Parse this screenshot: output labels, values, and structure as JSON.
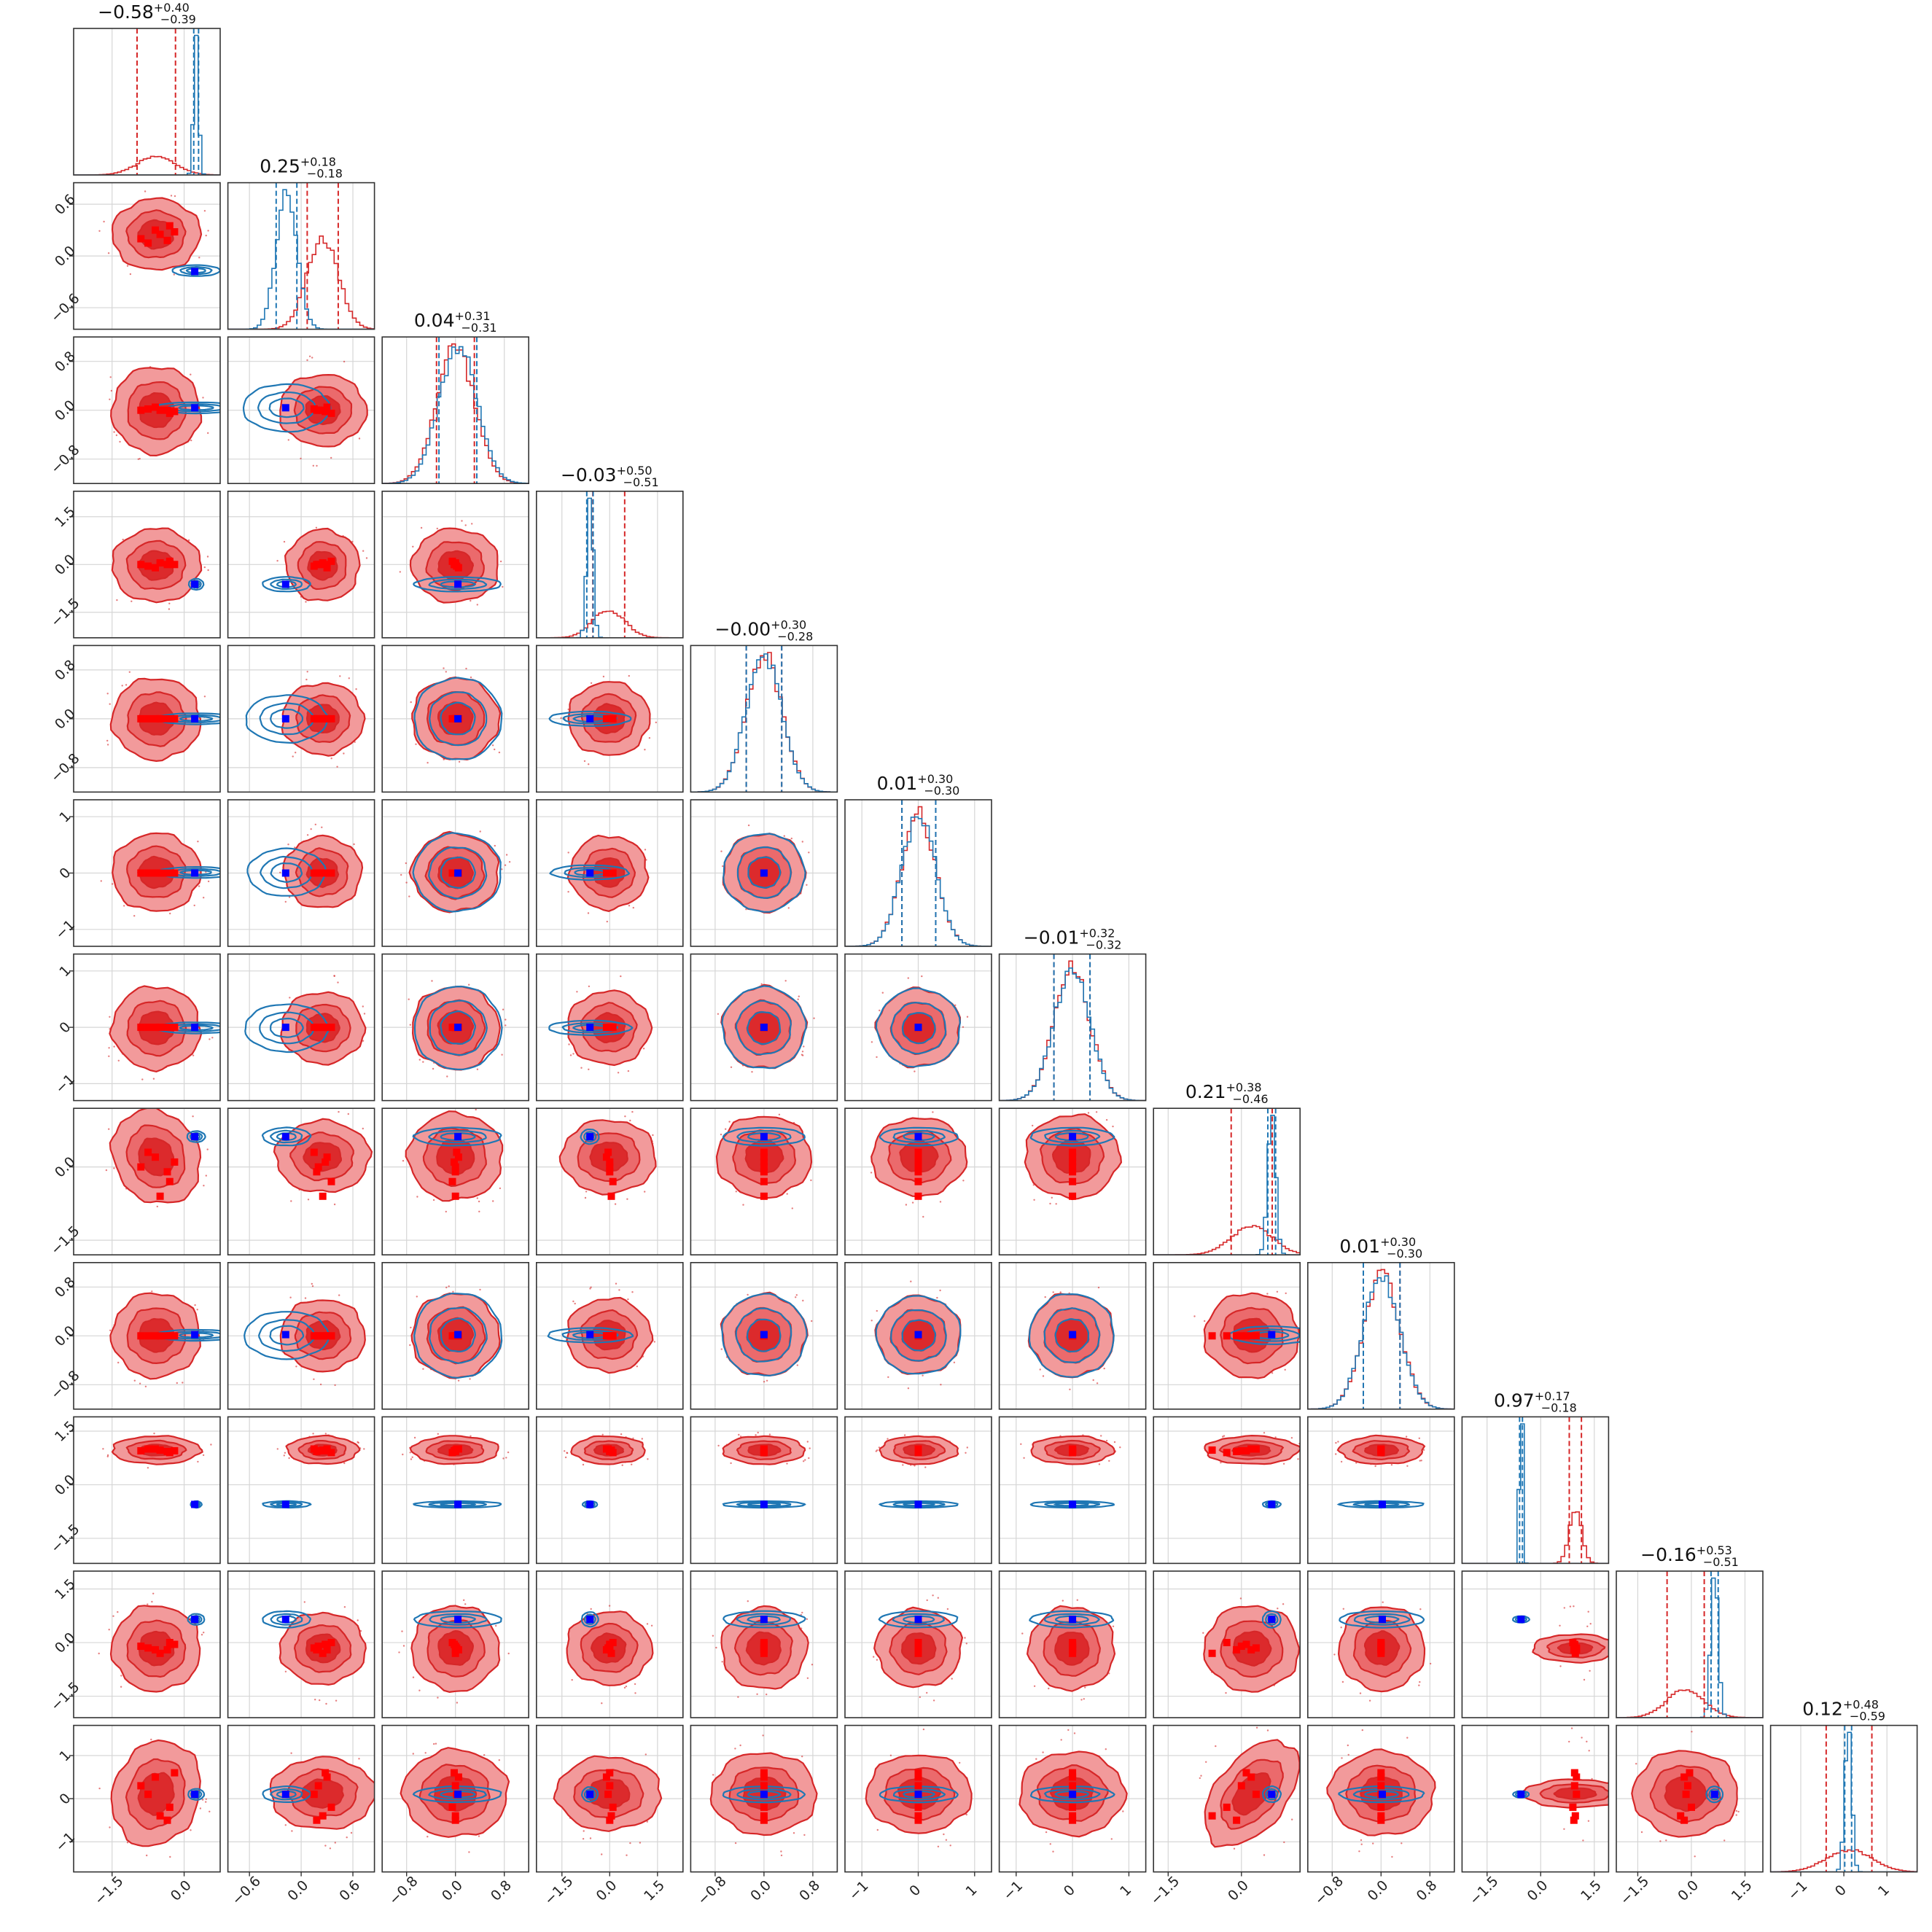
{
  "chart_data": {
    "type": "corner",
    "n_params": 12,
    "grid": true,
    "colors": {
      "posterior_red": "#d62728",
      "posterior_blue": "#1f77b4",
      "marker_red": "#ff0000",
      "marker_blue": "#0000ff",
      "contour_fill_outer": "#f29a9b",
      "contour_fill_inner": "#dc2a2c"
    },
    "series": [
      {
        "name": "",
        "color": "#d62728",
        "style": "filled contours"
      },
      {
        "name": "",
        "color": "#1f77b4",
        "style": "line contours"
      }
    ],
    "params": [
      {
        "title": "−0.58",
        "plus": "+0.40",
        "minus": "−0.39",
        "range": [
          -2.3,
          0.75
        ],
        "ticks": [
          -1.5,
          0.0
        ],
        "tick_labels": [
          "−1.5",
          "0.0"
        ],
        "red": {
          "mean": -0.58,
          "sd": 0.4
        },
        "blue": {
          "mean": 0.25,
          "sd": 0.05
        },
        "red_points": [
          -0.9,
          -0.6,
          -0.3,
          -0.5,
          -0.75,
          -0.2,
          -0.35
        ],
        "blue_point": 0.22
      },
      {
        "title": "0.25",
        "plus": "+0.18",
        "minus": "−0.18",
        "range": [
          -0.85,
          0.85
        ],
        "ticks": [
          -0.6,
          0.0,
          0.6
        ],
        "tick_labels": [
          "−0.6",
          "0.0",
          "0.6"
        ],
        "red": {
          "mean": 0.25,
          "sd": 0.18
        },
        "blue": {
          "mean": -0.17,
          "sd": 0.12
        },
        "red_points": [
          0.2,
          0.3,
          0.35,
          0.25,
          0.15,
          0.28,
          0.18
        ],
        "blue_point": -0.18
      },
      {
        "title": "0.04",
        "plus": "+0.31",
        "minus": "−0.31",
        "range": [
          -1.2,
          1.2
        ],
        "ticks": [
          -0.8,
          0.0,
          0.8
        ],
        "tick_labels": [
          "−0.8",
          "0.0",
          "0.8"
        ],
        "red": {
          "mean": 0.0,
          "sd": 0.31
        },
        "blue": {
          "mean": 0.04,
          "sd": 0.31
        },
        "red_points": [
          0.0,
          0.05,
          -0.05,
          0.0,
          0.02,
          -0.02,
          0.0
        ],
        "blue_point": 0.04
      },
      {
        "title": "−0.03",
        "plus": "+0.50",
        "minus": "−0.51",
        "range": [
          -2.3,
          2.3
        ],
        "ticks": [
          -1.5,
          0.0,
          1.5
        ],
        "tick_labels": [
          "−1.5",
          "0.0",
          "1.5"
        ],
        "red": {
          "mean": -0.03,
          "sd": 0.5
        },
        "blue": {
          "mean": -0.62,
          "sd": 0.1
        },
        "red_points": [
          0.0,
          -0.1,
          0.1,
          0.05,
          -0.05,
          0.0,
          0.0
        ],
        "blue_point": -0.62
      },
      {
        "title": "−0.00",
        "plus": "+0.30",
        "minus": "−0.28",
        "range": [
          -1.2,
          1.2
        ],
        "ticks": [
          -0.8,
          0.0,
          0.8
        ],
        "tick_labels": [
          "−0.8",
          "0.0",
          "0.8"
        ],
        "red": {
          "mean": 0.0,
          "sd": 0.29
        },
        "blue": {
          "mean": 0.0,
          "sd": 0.29
        },
        "red_points": [
          0.0,
          0.0,
          0.0,
          0.0,
          0.0,
          0.0,
          0.0
        ],
        "blue_point": 0.0
      },
      {
        "title": "0.01",
        "plus": "+0.30",
        "minus": "−0.30",
        "range": [
          -1.3,
          1.3
        ],
        "ticks": [
          -1,
          0,
          1
        ],
        "tick_labels": [
          "−1",
          "0",
          "1"
        ],
        "red": {
          "mean": 0.01,
          "sd": 0.3
        },
        "blue": {
          "mean": 0.01,
          "sd": 0.3
        },
        "red_points": [
          0.0,
          0.0,
          0.0,
          0.0,
          0.0,
          0.0,
          0.0
        ],
        "blue_point": 0.0
      },
      {
        "title": "−0.01",
        "plus": "+0.32",
        "minus": "−0.32",
        "range": [
          -1.3,
          1.3
        ],
        "ticks": [
          -1,
          0,
          1
        ],
        "tick_labels": [
          "−1",
          "0",
          "1"
        ],
        "red": {
          "mean": -0.01,
          "sd": 0.32
        },
        "blue": {
          "mean": -0.01,
          "sd": 0.32
        },
        "red_points": [
          0.0,
          0.0,
          0.0,
          0.0,
          0.0,
          0.0,
          0.0
        ],
        "blue_point": 0.0
      },
      {
        "title": "0.21",
        "plus": "+0.38",
        "minus": "−0.46",
        "range": [
          -1.8,
          1.2
        ],
        "ticks": [
          -1.5,
          0.0
        ],
        "tick_labels": [
          "−1.5",
          "0.0"
        ],
        "red": {
          "mean": 0.21,
          "sd": 0.42
        },
        "blue": {
          "mean": 0.62,
          "sd": 0.08
        },
        "red_points": [
          0.0,
          0.2,
          -0.3,
          -0.6,
          0.3,
          0.1,
          -0.1
        ],
        "blue_point": 0.62
      },
      {
        "title": "0.01",
        "plus": "+0.30",
        "minus": "−0.30",
        "range": [
          -1.2,
          1.2
        ],
        "ticks": [
          -0.8,
          0.0,
          0.8
        ],
        "tick_labels": [
          "−0.8",
          "0.0",
          "0.8"
        ],
        "red": {
          "mean": 0.01,
          "sd": 0.3
        },
        "blue": {
          "mean": 0.01,
          "sd": 0.3
        },
        "red_points": [
          0.0,
          0.0,
          0.0,
          0.0,
          0.0,
          0.0,
          0.0
        ],
        "blue_point": 0.02
      },
      {
        "title": "0.97",
        "plus": "+0.17",
        "minus": "−0.18",
        "range": [
          -2.2,
          1.9
        ],
        "ticks": [
          -1.5,
          0.0,
          1.5
        ],
        "tick_labels": [
          "−1.5",
          "0.0",
          "1.5"
        ],
        "red": {
          "mean": 0.97,
          "sd": 0.17
        },
        "blue": {
          "mean": -0.55,
          "sd": 0.04
        },
        "red_points": [
          0.95,
          1.0,
          0.9,
          0.97,
          1.0,
          0.95,
          0.93
        ],
        "blue_point": -0.55
      },
      {
        "title": "−0.16",
        "plus": "+0.53",
        "minus": "−0.51",
        "range": [
          -2.1,
          2.0
        ],
        "ticks": [
          -1.5,
          0.0,
          1.5
        ],
        "tick_labels": [
          "−1.5",
          "0.0",
          "1.5"
        ],
        "red": {
          "mean": -0.16,
          "sd": 0.52
        },
        "blue": {
          "mean": 0.65,
          "sd": 0.1
        },
        "red_points": [
          -0.1,
          -0.2,
          0.0,
          -0.3,
          -0.15,
          -0.05,
          -0.2
        ],
        "blue_point": 0.65
      },
      {
        "title": "0.12",
        "plus": "+0.48",
        "minus": "−0.59",
        "range": [
          -1.7,
          1.7
        ],
        "ticks": [
          -1,
          0,
          1
        ],
        "tick_labels": [
          "−1",
          "0",
          "1"
        ],
        "red": {
          "mean": 0.12,
          "sd": 0.53
        },
        "blue": {
          "mean": 0.1,
          "sd": 0.08
        },
        "red_points": [
          0.3,
          0.5,
          -0.2,
          -0.4,
          0.1,
          0.6,
          -0.5
        ],
        "blue_point": 0.1
      }
    ]
  }
}
